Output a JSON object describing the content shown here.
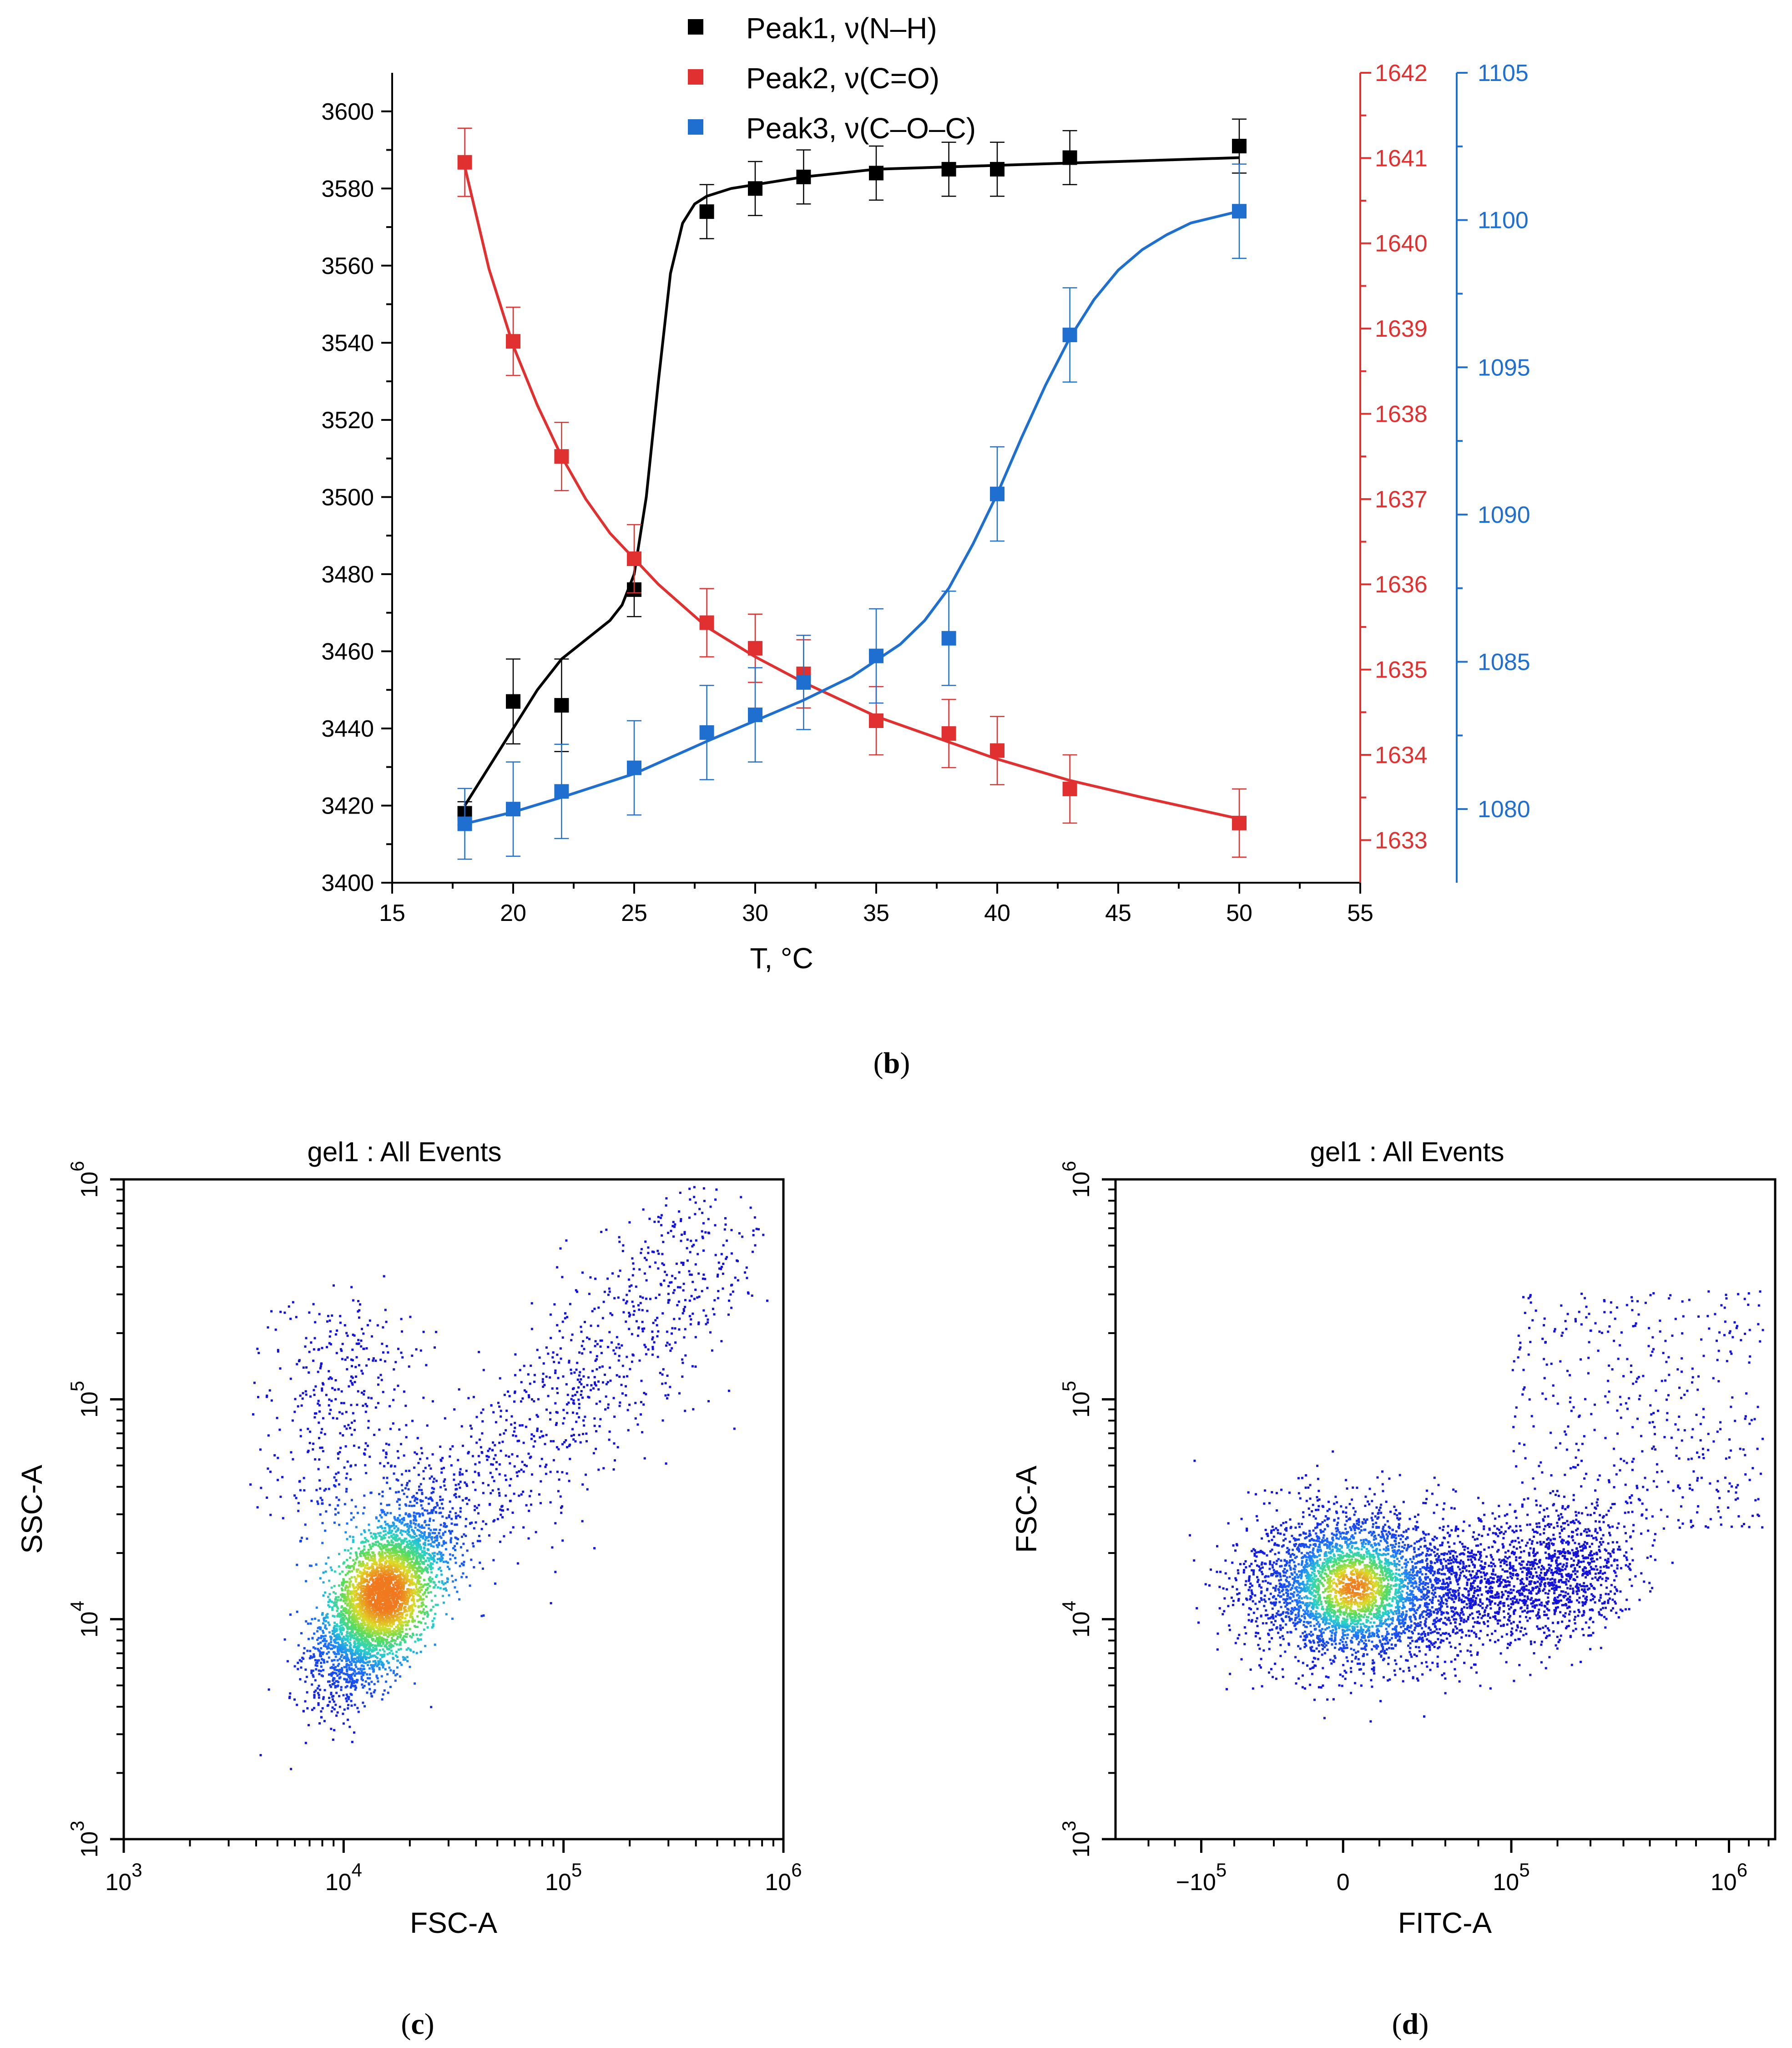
{
  "panel_b": {
    "caption_label": "b",
    "chart_data": {
      "type": "scatter",
      "xlabel": "T, °C",
      "xlim": [
        15,
        55
      ],
      "x_ticks": [
        "15",
        "20",
        "25",
        "30",
        "35",
        "40",
        "45",
        "50",
        "55"
      ],
      "y_left": {
        "lim": [
          3400,
          3610
        ],
        "ticks": [
          "3400",
          "3420",
          "3440",
          "3460",
          "3480",
          "3500",
          "3520",
          "3540",
          "3560",
          "3580",
          "3600"
        ],
        "color": "#000000"
      },
      "y_right1": {
        "lim": [
          1632.5,
          1642
        ],
        "ticks": [
          "1633",
          "1634",
          "1635",
          "1636",
          "1637",
          "1638",
          "1639",
          "1640",
          "1641",
          "1642"
        ],
        "color": "#e03030"
      },
      "y_right2": {
        "lim": [
          1077.5,
          1105
        ],
        "ticks": [
          "1080",
          "1085",
          "1090",
          "1095",
          "1100",
          "1105"
        ],
        "color": "#1f6fd1"
      },
      "series": [
        {
          "name": "Peak1, ν(N–H)",
          "color": "#000000",
          "axis": "left",
          "x": [
            18,
            20,
            22,
            25,
            28,
            30,
            32,
            35,
            38,
            40,
            43,
            50
          ],
          "y": [
            3418,
            3447,
            3446,
            3476,
            3574,
            3580,
            3583,
            3584,
            3585,
            3585,
            3588,
            3591
          ],
          "err": [
            3,
            11,
            12,
            7,
            7,
            7,
            7,
            7,
            7,
            7,
            7,
            7
          ],
          "fit_x": [
            18,
            19,
            20,
            21,
            22,
            23,
            24,
            24.5,
            25,
            25.5,
            26,
            26.5,
            27,
            27.5,
            28,
            29,
            30,
            32,
            35,
            40,
            45,
            50
          ],
          "fit_y": [
            3420,
            3430,
            3440,
            3450,
            3458,
            3463,
            3468,
            3472,
            3480,
            3500,
            3530,
            3558,
            3571,
            3576,
            3578,
            3580,
            3581,
            3583,
            3585,
            3586,
            3587,
            3588
          ]
        },
        {
          "name": "Peak2, ν(C=O)",
          "color": "#e03030",
          "axis": "right1",
          "x": [
            18,
            20,
            22,
            25,
            28,
            30,
            32,
            35,
            38,
            40,
            43,
            50
          ],
          "y": [
            1640.95,
            1638.85,
            1637.5,
            1636.3,
            1635.55,
            1635.25,
            1634.95,
            1634.4,
            1634.25,
            1634.05,
            1633.6,
            1633.2
          ],
          "err": [
            0.4,
            0.4,
            0.4,
            0.4,
            0.4,
            0.4,
            0.4,
            0.4,
            0.4,
            0.4,
            0.4,
            0.4
          ],
          "fit_x": [
            18,
            19,
            20,
            21,
            22,
            23,
            24,
            25,
            26,
            28,
            30,
            32,
            35,
            38,
            40,
            43,
            46,
            50
          ],
          "fit_y": [
            1640.9,
            1639.7,
            1638.8,
            1638.1,
            1637.5,
            1637.0,
            1636.6,
            1636.3,
            1636.0,
            1635.5,
            1635.15,
            1634.85,
            1634.45,
            1634.15,
            1633.95,
            1633.7,
            1633.5,
            1633.25
          ]
        },
        {
          "name": "Peak3, ν(C–O–C)",
          "color": "#1f6fd1",
          "axis": "right2",
          "x": [
            18,
            20,
            22,
            25,
            28,
            30,
            32,
            35,
            38,
            40,
            43,
            50
          ],
          "y": [
            1079.5,
            1080.0,
            1080.6,
            1081.4,
            1082.6,
            1083.2,
            1084.3,
            1085.2,
            1085.8,
            1090.7,
            1096.1,
            1100.3
          ],
          "err": [
            1.2,
            1.6,
            1.6,
            1.6,
            1.6,
            1.6,
            1.6,
            1.6,
            1.6,
            1.6,
            1.6,
            1.6
          ],
          "fit_x": [
            18,
            20,
            22,
            25,
            28,
            30,
            32,
            34,
            36,
            37,
            38,
            39,
            40,
            41,
            42,
            43,
            44,
            45,
            46,
            47,
            48,
            50
          ],
          "fit_y": [
            1079.5,
            1079.9,
            1080.4,
            1081.2,
            1082.3,
            1083.0,
            1083.7,
            1084.5,
            1085.6,
            1086.4,
            1087.5,
            1089.0,
            1090.7,
            1092.6,
            1094.4,
            1096.0,
            1097.3,
            1098.3,
            1099.0,
            1099.5,
            1099.9,
            1100.3
          ]
        }
      ]
    }
  },
  "panel_c": {
    "caption_label": "c",
    "chart_data": {
      "type": "scatter",
      "title": "gel1 : All Events",
      "xlabel": "FSC-A",
      "ylabel": "SSC-A",
      "x_scale": "log",
      "y_scale": "log",
      "xlim": [
        1000,
        1000000
      ],
      "ylim": [
        1000,
        1000000
      ],
      "x_ticks": [
        {
          "base": "10",
          "exp": "3"
        },
        {
          "base": "10",
          "exp": "4"
        },
        {
          "base": "10",
          "exp": "5"
        },
        {
          "base": "10",
          "exp": "6"
        }
      ],
      "y_ticks": [
        {
          "base": "10",
          "exp": "3"
        },
        {
          "base": "10",
          "exp": "4"
        },
        {
          "base": "10",
          "exp": "5"
        },
        {
          "base": "10",
          "exp": "6"
        }
      ],
      "density_clusters": [
        {
          "cx": 15000,
          "cy": 12000,
          "weight": 0.72
        },
        {
          "cx": 60000,
          "cy": 50000,
          "weight": 0.2
        },
        {
          "cx": 12000,
          "cy": 60000,
          "weight": 0.08
        }
      ]
    }
  },
  "panel_d": {
    "caption_label": "d",
    "chart_data": {
      "type": "scatter",
      "title": "gel1 : All Events",
      "xlabel": "FITC-A",
      "ylabel": "FSC-A",
      "x_scale": "biexponential",
      "y_scale": "log",
      "xlim": [
        -150000,
        1500000
      ],
      "ylim": [
        1000,
        1000000
      ],
      "x_ticks": [
        {
          "base": "−10",
          "exp": "5"
        },
        {
          "base": "0",
          "exp": ""
        },
        {
          "base": "10",
          "exp": "5"
        },
        {
          "base": "10",
          "exp": "6"
        }
      ],
      "y_ticks": [
        {
          "base": "10",
          "exp": "3"
        },
        {
          "base": "10",
          "exp": "4"
        },
        {
          "base": "10",
          "exp": "5"
        },
        {
          "base": "10",
          "exp": "6"
        }
      ],
      "density_clusters": [
        {
          "cx": 0,
          "cy": 15000,
          "weight": 0.6
        },
        {
          "cx": 80000,
          "cy": 14000,
          "weight": 0.32
        },
        {
          "cx": 600000,
          "cy": 60000,
          "weight": 0.08
        }
      ]
    }
  }
}
